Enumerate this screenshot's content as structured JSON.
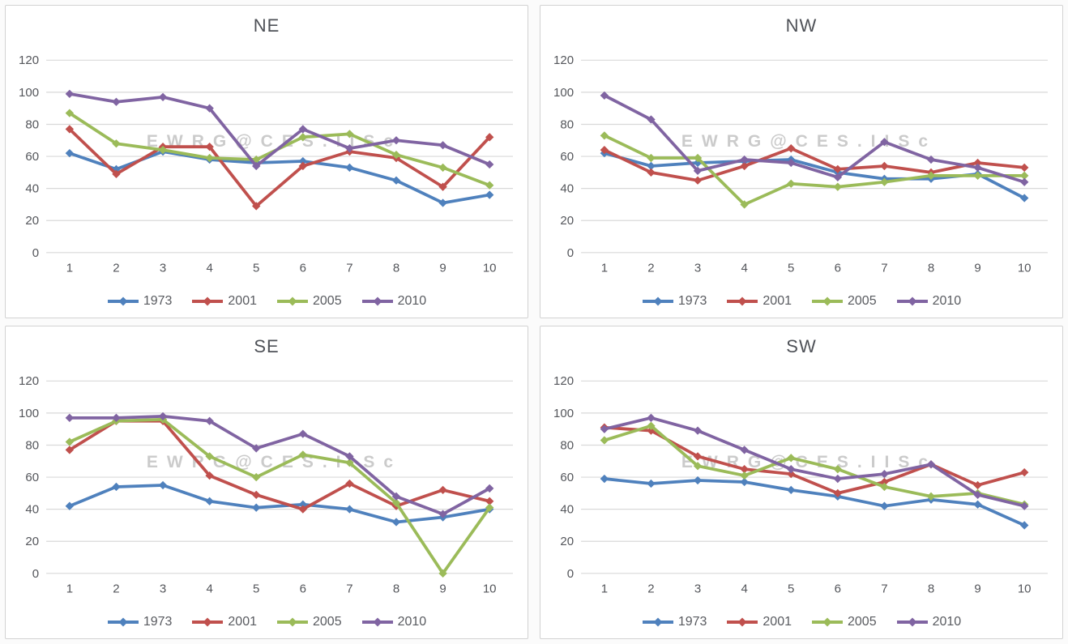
{
  "watermark": {
    "text": "EWRG@CES.IISc"
  },
  "style": {
    "gridline_color": "#d9d9d9",
    "text_color": "#54565b",
    "panel_border_color": "#d2d2d2",
    "background": "#ffffff"
  },
  "chart_data": [
    {
      "type": "line",
      "title": "NE",
      "categories": [
        "1",
        "2",
        "3",
        "4",
        "5",
        "6",
        "7",
        "8",
        "9",
        "10"
      ],
      "yticks": [
        0,
        20,
        40,
        60,
        80,
        100,
        120
      ],
      "ylim": [
        0,
        120
      ],
      "grid": true,
      "legend_position": "bottom",
      "series": [
        {
          "name": "1973",
          "color": "#4F81BD",
          "values": [
            62,
            52,
            63,
            58,
            56,
            57,
            53,
            45,
            31,
            36
          ]
        },
        {
          "name": "2001",
          "color": "#C0504D",
          "values": [
            77,
            49,
            66,
            66,
            29,
            54,
            63,
            59,
            41,
            72
          ]
        },
        {
          "name": "2005",
          "color": "#9BBB59",
          "values": [
            87,
            68,
            64,
            59,
            58,
            72,
            74,
            61,
            53,
            42
          ]
        },
        {
          "name": "2010",
          "color": "#8064A2",
          "values": [
            99,
            94,
            97,
            90,
            54,
            77,
            65,
            70,
            67,
            55
          ]
        }
      ]
    },
    {
      "type": "line",
      "title": "NW",
      "categories": [
        "1",
        "2",
        "3",
        "4",
        "5",
        "6",
        "7",
        "8",
        "9",
        "10"
      ],
      "yticks": [
        0,
        20,
        40,
        60,
        80,
        100,
        120
      ],
      "ylim": [
        0,
        120
      ],
      "grid": true,
      "legend_position": "bottom",
      "series": [
        {
          "name": "1973",
          "color": "#4F81BD",
          "values": [
            62,
            54,
            56,
            57,
            58,
            50,
            46,
            46,
            49,
            34
          ]
        },
        {
          "name": "2001",
          "color": "#C0504D",
          "values": [
            64,
            50,
            45,
            54,
            65,
            52,
            54,
            50,
            56,
            53
          ]
        },
        {
          "name": "2005",
          "color": "#9BBB59",
          "values": [
            73,
            59,
            59,
            30,
            43,
            41,
            44,
            48,
            48,
            48
          ]
        },
        {
          "name": "2010",
          "color": "#8064A2",
          "values": [
            98,
            83,
            51,
            58,
            56,
            47,
            69,
            58,
            53,
            44
          ]
        }
      ]
    },
    {
      "type": "line",
      "title": "SE",
      "categories": [
        "1",
        "2",
        "3",
        "4",
        "5",
        "6",
        "7",
        "8",
        "9",
        "10"
      ],
      "yticks": [
        0,
        20,
        40,
        60,
        80,
        100,
        120
      ],
      "ylim": [
        0,
        120
      ],
      "grid": true,
      "legend_position": "bottom",
      "series": [
        {
          "name": "1973",
          "color": "#4F81BD",
          "values": [
            42,
            54,
            55,
            45,
            41,
            43,
            40,
            32,
            35,
            40
          ]
        },
        {
          "name": "2001",
          "color": "#C0504D",
          "values": [
            77,
            95,
            95,
            61,
            49,
            40,
            56,
            42,
            52,
            45
          ]
        },
        {
          "name": "2005",
          "color": "#9BBB59",
          "values": [
            82,
            95,
            96,
            73,
            60,
            74,
            69,
            44,
            0,
            41
          ]
        },
        {
          "name": "2010",
          "color": "#8064A2",
          "values": [
            97,
            97,
            98,
            95,
            78,
            87,
            73,
            48,
            37,
            53
          ]
        }
      ]
    },
    {
      "type": "line",
      "title": "SW",
      "categories": [
        "1",
        "2",
        "3",
        "4",
        "5",
        "6",
        "7",
        "8",
        "9",
        "10"
      ],
      "yticks": [
        0,
        20,
        40,
        60,
        80,
        100,
        120
      ],
      "ylim": [
        0,
        120
      ],
      "grid": true,
      "legend_position": "bottom",
      "series": [
        {
          "name": "1973",
          "color": "#4F81BD",
          "values": [
            59,
            56,
            58,
            57,
            52,
            48,
            42,
            46,
            43,
            30
          ]
        },
        {
          "name": "2001",
          "color": "#C0504D",
          "values": [
            91,
            89,
            73,
            65,
            62,
            50,
            57,
            68,
            55,
            63
          ]
        },
        {
          "name": "2005",
          "color": "#9BBB59",
          "values": [
            83,
            92,
            67,
            61,
            72,
            65,
            54,
            48,
            50,
            43
          ]
        },
        {
          "name": "2010",
          "color": "#8064A2",
          "values": [
            90,
            97,
            89,
            77,
            65,
            59,
            62,
            68,
            49,
            42
          ]
        }
      ]
    }
  ]
}
